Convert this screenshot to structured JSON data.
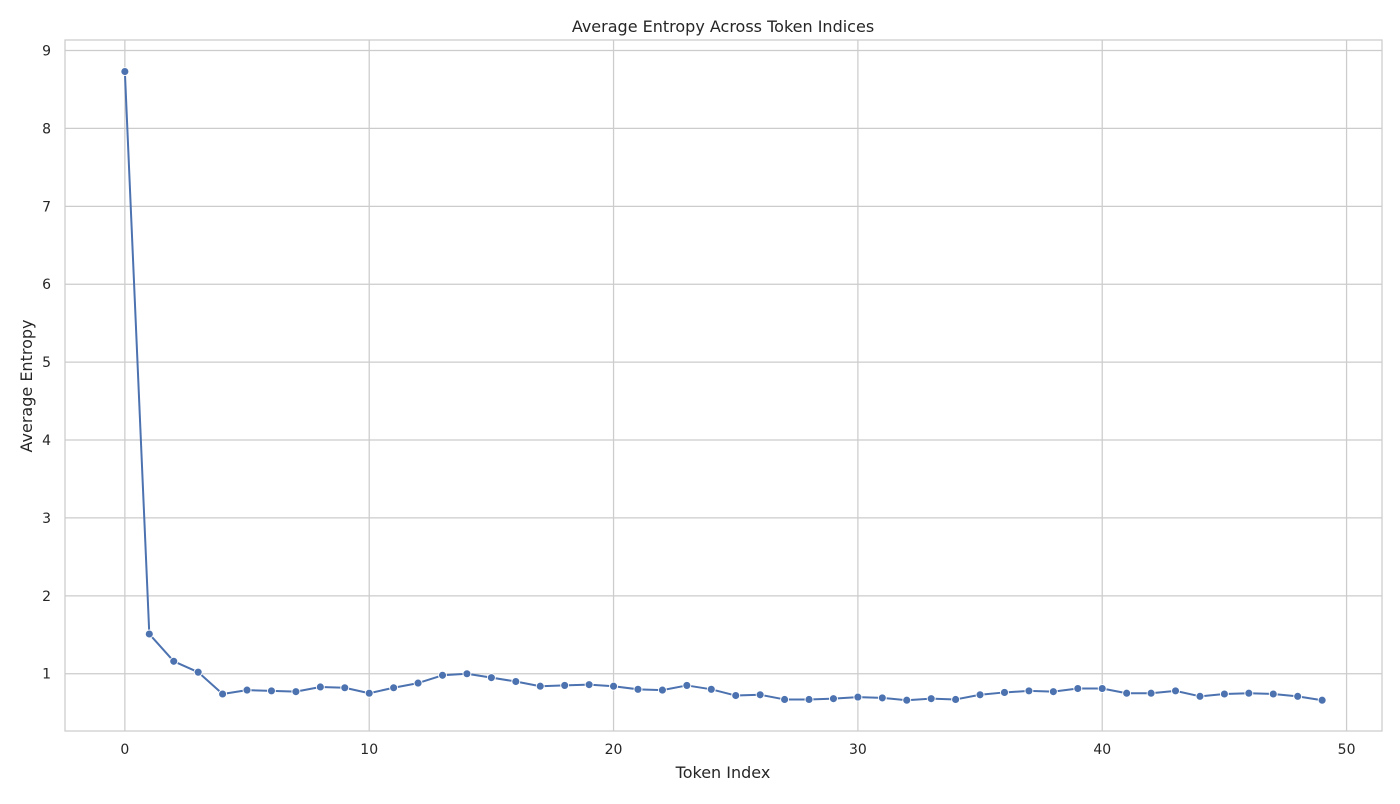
{
  "chart_data": {
    "type": "line",
    "title": "Average Entropy Across Token Indices",
    "xlabel": "Token Index",
    "ylabel": "Average Entropy",
    "xlim": [
      -2.45,
      51.45
    ],
    "ylim": [
      0.265,
      9.135
    ],
    "xticks": [
      0,
      10,
      20,
      30,
      40,
      50
    ],
    "yticks": [
      1,
      2,
      3,
      4,
      5,
      6,
      7,
      8,
      9
    ],
    "grid": true,
    "legend": "none",
    "colors": {
      "line": "#4c72b0",
      "grid": "#cccccc",
      "axes": "#cccccc",
      "text": "#262626"
    },
    "x": [
      0,
      1,
      2,
      3,
      4,
      5,
      6,
      7,
      8,
      9,
      10,
      11,
      12,
      13,
      14,
      15,
      16,
      17,
      18,
      19,
      20,
      21,
      22,
      23,
      24,
      25,
      26,
      27,
      28,
      29,
      30,
      31,
      32,
      33,
      34,
      35,
      36,
      37,
      38,
      39,
      40,
      41,
      42,
      43,
      44,
      45,
      46,
      47,
      48,
      49
    ],
    "series": [
      {
        "values": [
          8.73,
          1.51,
          1.16,
          1.02,
          0.74,
          0.79,
          0.78,
          0.77,
          0.83,
          0.82,
          0.75,
          0.82,
          0.88,
          0.98,
          1.0,
          0.95,
          0.9,
          0.84,
          0.85,
          0.86,
          0.84,
          0.8,
          0.79,
          0.85,
          0.8,
          0.72,
          0.73,
          0.67,
          0.67,
          0.68,
          0.7,
          0.69,
          0.66,
          0.68,
          0.67,
          0.73,
          0.76,
          0.78,
          0.77,
          0.81,
          0.81,
          0.75,
          0.75,
          0.78,
          0.71,
          0.74,
          0.75,
          0.74,
          0.71,
          0.66
        ]
      }
    ]
  }
}
